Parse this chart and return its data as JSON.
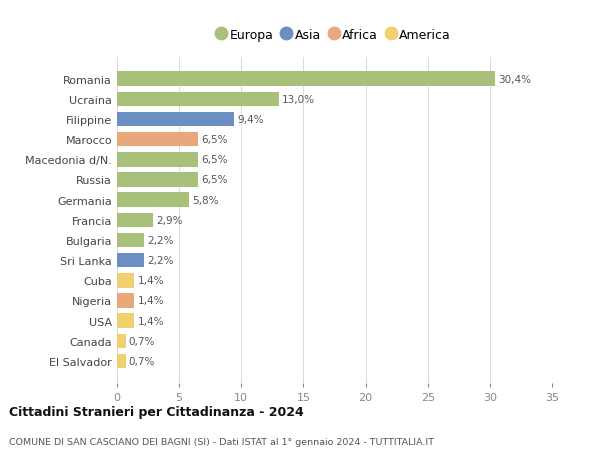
{
  "countries": [
    "Romania",
    "Ucraina",
    "Filippine",
    "Marocco",
    "Macedonia d/N.",
    "Russia",
    "Germania",
    "Francia",
    "Bulgaria",
    "Sri Lanka",
    "Cuba",
    "Nigeria",
    "USA",
    "Canada",
    "El Salvador"
  ],
  "values": [
    30.4,
    13.0,
    9.4,
    6.5,
    6.5,
    6.5,
    5.8,
    2.9,
    2.2,
    2.2,
    1.4,
    1.4,
    1.4,
    0.7,
    0.7
  ],
  "labels": [
    "30,4%",
    "13,0%",
    "9,4%",
    "6,5%",
    "6,5%",
    "6,5%",
    "5,8%",
    "2,9%",
    "2,2%",
    "2,2%",
    "1,4%",
    "1,4%",
    "1,4%",
    "0,7%",
    "0,7%"
  ],
  "continents": [
    "Europa",
    "Europa",
    "Asia",
    "Africa",
    "Europa",
    "Europa",
    "Europa",
    "Europa",
    "Europa",
    "Asia",
    "America",
    "Africa",
    "America",
    "America",
    "America"
  ],
  "continent_colors": {
    "Europa": "#a8c07a",
    "Asia": "#6b8fc2",
    "Africa": "#e8a87c",
    "America": "#f0d070"
  },
  "legend_order": [
    "Europa",
    "Asia",
    "Africa",
    "America"
  ],
  "title": "Cittadini Stranieri per Cittadinanza - 2024",
  "subtitle": "COMUNE DI SAN CASCIANO DEI BAGNI (SI) - Dati ISTAT al 1° gennaio 2024 - TUTTITALIA.IT",
  "xlim": [
    0,
    35
  ],
  "xticks": [
    0,
    5,
    10,
    15,
    20,
    25,
    30,
    35
  ],
  "grid_color": "#dddddd",
  "background_color": "#ffffff",
  "bar_height": 0.72
}
